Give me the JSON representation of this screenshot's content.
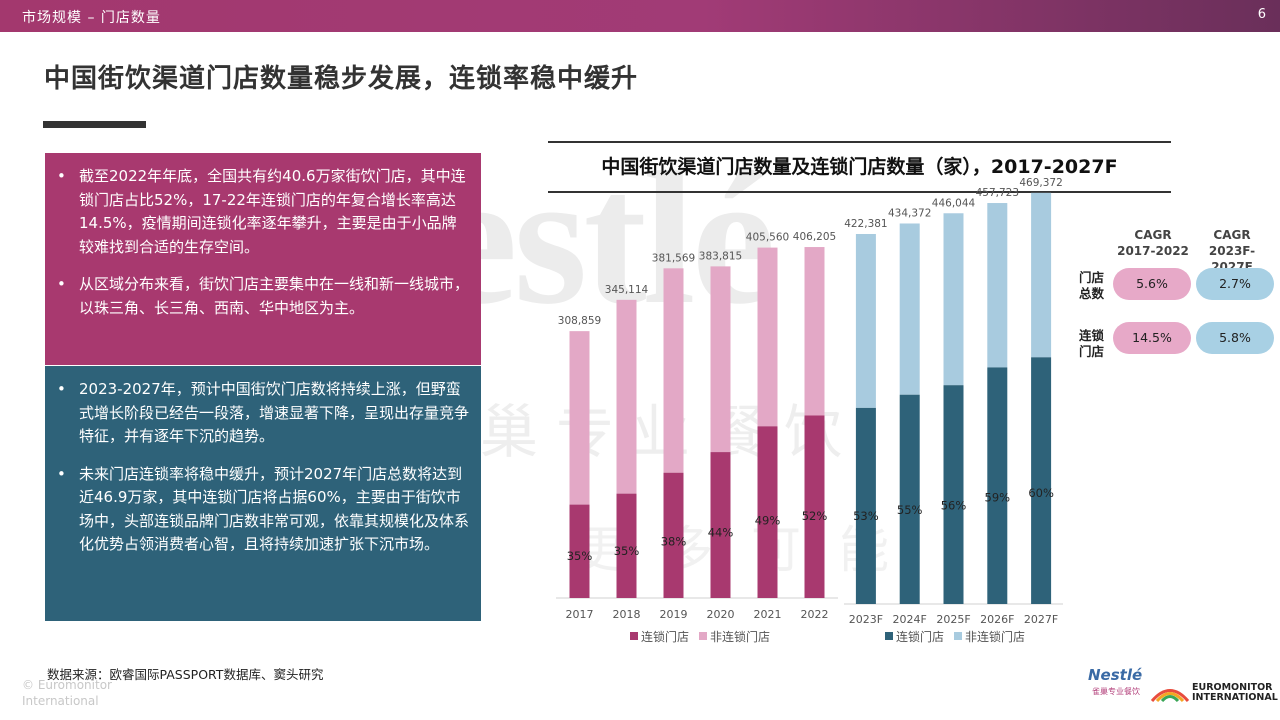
{
  "header": {
    "breadcrumb": "市场规模 – 门店数量",
    "page_number": "6"
  },
  "title": "中国街饮渠道门店数量稳步发展，连锁率稳中缓升",
  "bullets_top": [
    "截至2022年年底，全国共有约40.6万家街饮门店，其中连锁门店占比52%，17-22年连锁门店的年复合增长率高达14.5%，疫情期间连锁化率逐年攀升，主要是由于小品牌较难找到合适的生存空间。",
    "从区域分布来看，街饮门店主要集中在一线和新一线城市，以珠三角、长三角、西南、华中地区为主。"
  ],
  "bullets_bottom": [
    "2023-2027年，预计中国街饮门店数将持续上涨，但野蛮式增长阶段已经告一段落，增速显著下降，呈现出存量竞争特征，并有逐年下沉的趋势。",
    "未来门店连锁率将稳中缓升，预计2027年门店总数将达到近46.9万家，其中连锁门店将占据60%，主要由于街饮市场中，头部连锁品牌门店数非常可观，依靠其规模化及体系化优势占领消费者心智，且将持续加速扩张下沉市场。"
  ],
  "bullet_char": "•",
  "source": "数据来源：欧睿国际PASSPORT数据库、窦头研究",
  "copyright": {
    "line1": "© Euromonitor",
    "line2": "International"
  },
  "watermark": {
    "brand": "Nestlé",
    "line2": "巢专业餐饮",
    "line3": "更多可能"
  },
  "chart_data": [
    {
      "type": "bar",
      "stacked": true,
      "title": "中国街饮渠道门店数量及连锁门店数量（家），2017-2027F",
      "categories": [
        "2017",
        "2018",
        "2019",
        "2020",
        "2021",
        "2022"
      ],
      "totals": [
        308859,
        345114,
        381569,
        383815,
        405560,
        406205
      ],
      "total_labels": [
        "308,859",
        "345,114",
        "381,569",
        "383,815",
        "405,560",
        "406,205"
      ],
      "chain_share": [
        0.35,
        0.35,
        0.38,
        0.44,
        0.49,
        0.52
      ],
      "share_labels": [
        "35%",
        "35%",
        "38%",
        "44%",
        "49%",
        "52%"
      ],
      "series": [
        {
          "name": "连锁门店",
          "color": "#a8396f"
        },
        {
          "name": "非连锁门店",
          "color": "#e3a8c6"
        }
      ],
      "ylim": [
        0,
        500000
      ],
      "legend": "bottom"
    },
    {
      "type": "bar",
      "stacked": true,
      "categories": [
        "2023F",
        "2024F",
        "2025F",
        "2026F",
        "2027F"
      ],
      "totals": [
        422381,
        434372,
        446044,
        457723,
        469372
      ],
      "total_labels": [
        "422,381",
        "434,372",
        "446,044",
        "457,723",
        "469,372"
      ],
      "chain_share": [
        0.53,
        0.55,
        0.56,
        0.59,
        0.6
      ],
      "share_labels": [
        "53%",
        "55%",
        "56%",
        "59%",
        "60%"
      ],
      "series": [
        {
          "name": "连锁门店",
          "color": "#2e6279"
        },
        {
          "name": "非连锁门店",
          "color": "#a8cbdf"
        }
      ],
      "ylim": [
        0,
        500000
      ],
      "legend": "bottom"
    }
  ],
  "cagr_table": {
    "headers": [
      {
        "line1": "CAGR",
        "line2": "2017-2022"
      },
      {
        "line1": "CAGR",
        "line2": "2023F-2027F"
      }
    ],
    "rows": [
      {
        "label1": "门店",
        "label2": "总数",
        "values": [
          "5.6%",
          "2.7%"
        ]
      },
      {
        "label1": "连锁",
        "label2": "门店",
        "values": [
          "14.5%",
          "5.8%"
        ]
      }
    ]
  },
  "logos": {
    "nestle": "Nestlé",
    "nestle_sub": "雀巢专业餐饮",
    "euromonitor_line1": "EUROMONITOR",
    "euromonitor_line2": "INTERNATIONAL"
  }
}
